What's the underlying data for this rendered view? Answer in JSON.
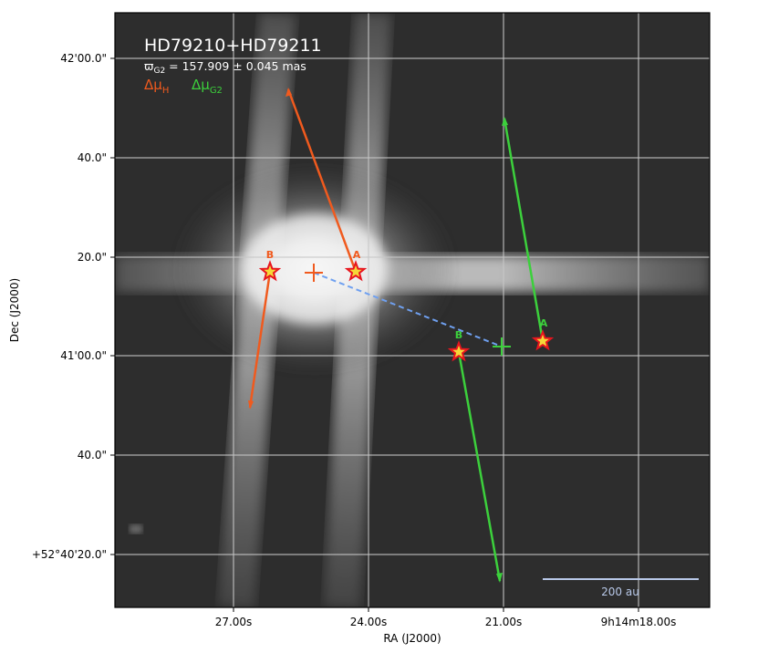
{
  "chart_data": {
    "type": "scatter",
    "title": "HD79210+HD79211",
    "parallax_prefix": "ϖ",
    "parallax_sub": "G2",
    "parallax_value": " = 157.909 ± 0.045 mas",
    "legend": [
      {
        "label": "Δμ",
        "sub": "H",
        "color": "#f05a1e"
      },
      {
        "label": "Δμ",
        "sub": "G2",
        "color": "#3cd03c"
      }
    ],
    "xlabel": "RA (J2000)",
    "ylabel": "Dec (J2000)",
    "x_ticks": [
      "27.00s",
      "24.00s",
      "21.00s",
      "9h14m18.00s"
    ],
    "y_ticks": [
      "42'00.0\"",
      "40.0\"",
      "20.0\"",
      "41'00.0\"",
      "40.0\"",
      "+52°40'20.0\""
    ],
    "stars": [
      {
        "group": "H",
        "name": "A",
        "color": "#f05a1e"
      },
      {
        "group": "H",
        "name": "B",
        "color": "#f05a1e"
      },
      {
        "group": "G2",
        "name": "A",
        "color": "#3cd03c"
      },
      {
        "group": "G2",
        "name": "B",
        "color": "#3cd03c"
      }
    ],
    "scale_bar_label": "200 au",
    "grid": true,
    "background": "greyscale sky image"
  }
}
